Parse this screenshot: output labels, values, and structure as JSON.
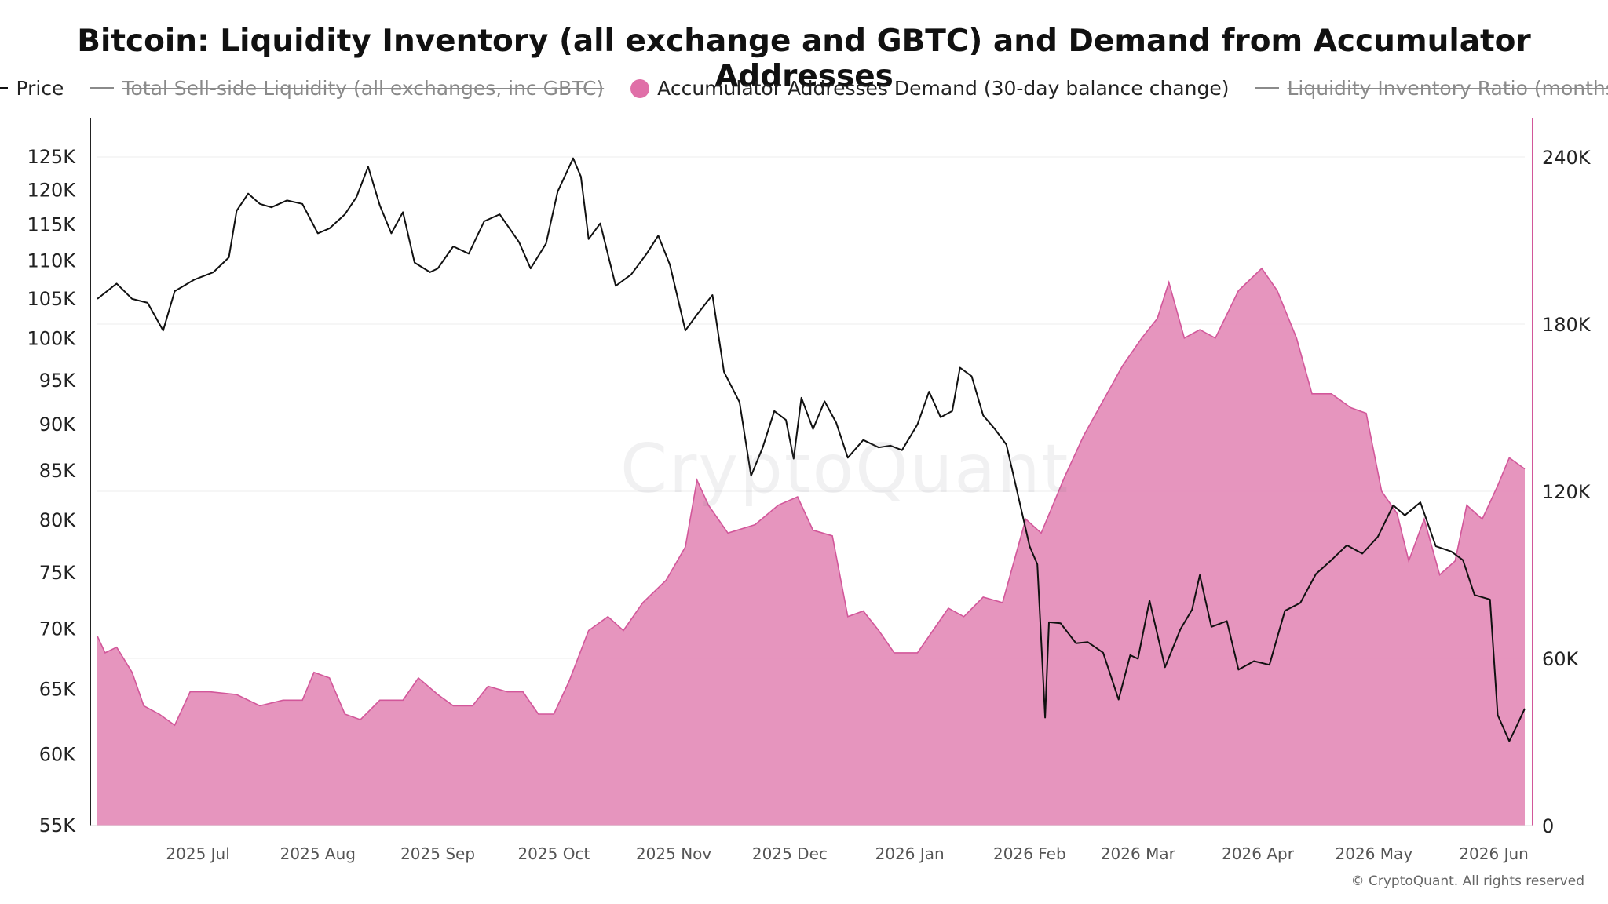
{
  "title": "Bitcoin: Liquidity Inventory (all exchange and GBTC) and Demand from Accumulator Addresses",
  "legend": [
    {
      "label": "Price",
      "marker": "line",
      "color": "#111111",
      "active": true
    },
    {
      "label": "Total Sell-side Liquidity (all exchanges, inc GBTC)",
      "marker": "line",
      "color": "#8a8a8a",
      "active": false
    },
    {
      "label": "Accumulator Addresses Demand (30-day balance change)",
      "marker": "dot",
      "color": "#e06fa8",
      "active": true
    },
    {
      "label": "Liquidity Inventory Ratio (months)",
      "marker": "line",
      "color": "#8a8a8a",
      "active": false
    }
  ],
  "watermark": "CryptoQuant",
  "copyright": "© CryptoQuant. All rights reserved",
  "colors": {
    "price": "#111111",
    "demand_fill": "#e58fbb",
    "demand_stroke": "#d2579a"
  },
  "chart_data": {
    "type": "line",
    "title": "Bitcoin: Liquidity Inventory (all exchange and GBTC) and Demand from Accumulator Addresses",
    "x_start": "2025-06-05",
    "x_end": "2026-06-09",
    "x_tick_labels": [
      "2025 Jul",
      "2025 Aug",
      "2025 Sep",
      "2025 Oct",
      "2025 Nov",
      "2025 Dec",
      "2026 Jan",
      "2026 Feb",
      "2026 Mar",
      "2026 Apr",
      "2026 May",
      "2026 Jun"
    ],
    "x_tick_dates": [
      "2025-07-01",
      "2025-08-01",
      "2025-09-01",
      "2025-10-01",
      "2025-11-01",
      "2025-12-01",
      "2026-01-01",
      "2026-02-01",
      "2026-03-01",
      "2026-04-01",
      "2026-05-01",
      "2026-06-01"
    ],
    "y_left": {
      "scale": "log",
      "range": [
        55000,
        125000
      ],
      "ticks": [
        55000,
        60000,
        65000,
        70000,
        75000,
        80000,
        85000,
        90000,
        95000,
        100000,
        105000,
        110000,
        115000,
        120000,
        125000
      ],
      "tick_labels": [
        "55K",
        "60K",
        "65K",
        "70K",
        "75K",
        "80K",
        "85K",
        "90K",
        "95K",
        "100K",
        "105K",
        "110K",
        "115K",
        "120K",
        "125K"
      ]
    },
    "y_right": {
      "scale": "linear",
      "range": [
        0,
        240000
      ],
      "ticks": [
        0,
        60000,
        120000,
        180000,
        240000
      ],
      "tick_labels": [
        "0",
        "60K",
        "120K",
        "180K",
        "240K"
      ]
    },
    "grid": true,
    "series": [
      {
        "name": "Price",
        "axis": "left",
        "points": [
          [
            "2025-06-05",
            105000
          ],
          [
            "2025-06-10",
            107000
          ],
          [
            "2025-06-14",
            105000
          ],
          [
            "2025-06-18",
            104500
          ],
          [
            "2025-06-22",
            101000
          ],
          [
            "2025-06-25",
            106000
          ],
          [
            "2025-06-30",
            107500
          ],
          [
            "2025-07-05",
            108500
          ],
          [
            "2025-07-09",
            110500
          ],
          [
            "2025-07-11",
            117000
          ],
          [
            "2025-07-14",
            119500
          ],
          [
            "2025-07-17",
            118000
          ],
          [
            "2025-07-20",
            117500
          ],
          [
            "2025-07-24",
            118500
          ],
          [
            "2025-07-28",
            118000
          ],
          [
            "2025-08-01",
            113800
          ],
          [
            "2025-08-04",
            114500
          ],
          [
            "2025-08-08",
            116500
          ],
          [
            "2025-08-11",
            119000
          ],
          [
            "2025-08-14",
            123500
          ],
          [
            "2025-08-17",
            117800
          ],
          [
            "2025-08-20",
            113800
          ],
          [
            "2025-08-23",
            116800
          ],
          [
            "2025-08-26",
            109800
          ],
          [
            "2025-08-30",
            108500
          ],
          [
            "2025-09-01",
            109000
          ],
          [
            "2025-09-05",
            112000
          ],
          [
            "2025-09-09",
            111000
          ],
          [
            "2025-09-13",
            115500
          ],
          [
            "2025-09-17",
            116500
          ],
          [
            "2025-09-22",
            112600
          ],
          [
            "2025-09-25",
            109000
          ],
          [
            "2025-09-29",
            112400
          ],
          [
            "2025-10-02",
            119800
          ],
          [
            "2025-10-06",
            124800
          ],
          [
            "2025-10-08",
            122000
          ],
          [
            "2025-10-10",
            113000
          ],
          [
            "2025-10-13",
            115200
          ],
          [
            "2025-10-17",
            106700
          ],
          [
            "2025-10-21",
            108200
          ],
          [
            "2025-10-25",
            111000
          ],
          [
            "2025-10-28",
            113500
          ],
          [
            "2025-10-31",
            109500
          ],
          [
            "2025-11-04",
            101000
          ],
          [
            "2025-11-07",
            103000
          ],
          [
            "2025-11-11",
            105500
          ],
          [
            "2025-11-14",
            96000
          ],
          [
            "2025-11-18",
            92500
          ],
          [
            "2025-11-21",
            84500
          ],
          [
            "2025-11-24",
            87500
          ],
          [
            "2025-11-27",
            91500
          ],
          [
            "2025-11-30",
            90500
          ],
          [
            "2025-12-02",
            86300
          ],
          [
            "2025-12-04",
            93000
          ],
          [
            "2025-12-07",
            89500
          ],
          [
            "2025-12-10",
            92600
          ],
          [
            "2025-12-13",
            90200
          ],
          [
            "2025-12-16",
            86400
          ],
          [
            "2025-12-20",
            88300
          ],
          [
            "2025-12-24",
            87500
          ],
          [
            "2025-12-27",
            87700
          ],
          [
            "2025-12-30",
            87200
          ],
          [
            "2026-01-03",
            90000
          ],
          [
            "2026-01-06",
            93700
          ],
          [
            "2026-01-09",
            90800
          ],
          [
            "2026-01-12",
            91500
          ],
          [
            "2026-01-14",
            96500
          ],
          [
            "2026-01-17",
            95500
          ],
          [
            "2026-01-20",
            91000
          ],
          [
            "2026-01-23",
            89500
          ],
          [
            "2026-01-26",
            87800
          ],
          [
            "2026-01-29",
            82500
          ],
          [
            "2026-02-01",
            77500
          ],
          [
            "2026-02-03",
            75800
          ],
          [
            "2026-02-05",
            62800
          ],
          [
            "2026-02-06",
            70600
          ],
          [
            "2026-02-09",
            70500
          ],
          [
            "2026-02-13",
            68800
          ],
          [
            "2026-02-16",
            68900
          ],
          [
            "2026-02-20",
            68000
          ],
          [
            "2026-02-24",
            64200
          ],
          [
            "2026-02-27",
            67800
          ],
          [
            "2026-03-01",
            67500
          ],
          [
            "2026-03-04",
            72500
          ],
          [
            "2026-03-08",
            66800
          ],
          [
            "2026-03-12",
            70000
          ],
          [
            "2026-03-15",
            71700
          ],
          [
            "2026-03-17",
            74800
          ],
          [
            "2026-03-20",
            70200
          ],
          [
            "2026-03-24",
            70700
          ],
          [
            "2026-03-27",
            66600
          ],
          [
            "2026-03-31",
            67300
          ],
          [
            "2026-04-04",
            67000
          ],
          [
            "2026-04-08",
            71600
          ],
          [
            "2026-04-12",
            72300
          ],
          [
            "2026-04-16",
            74900
          ],
          [
            "2026-04-20",
            76200
          ],
          [
            "2026-04-24",
            77600
          ],
          [
            "2026-04-28",
            76800
          ],
          [
            "2026-05-02",
            78400
          ],
          [
            "2026-05-06",
            81500
          ],
          [
            "2026-05-09",
            80500
          ],
          [
            "2026-05-13",
            81800
          ],
          [
            "2026-05-17",
            77500
          ],
          [
            "2026-05-21",
            77000
          ],
          [
            "2026-05-24",
            76200
          ],
          [
            "2026-05-27",
            73000
          ],
          [
            "2026-05-31",
            72600
          ],
          [
            "2026-06-02",
            63000
          ],
          [
            "2026-06-05",
            61000
          ],
          [
            "2026-06-07",
            62200
          ],
          [
            "2026-06-09",
            63500
          ]
        ]
      },
      {
        "name": "Accumulator Addresses Demand (30-day balance change)",
        "axis": "right",
        "points": [
          [
            "2025-06-05",
            68000
          ],
          [
            "2025-06-07",
            62000
          ],
          [
            "2025-06-10",
            64000
          ],
          [
            "2025-06-14",
            55000
          ],
          [
            "2025-06-17",
            43000
          ],
          [
            "2025-06-21",
            40000
          ],
          [
            "2025-06-25",
            36000
          ],
          [
            "2025-06-29",
            48000
          ],
          [
            "2025-07-04",
            48000
          ],
          [
            "2025-07-11",
            47000
          ],
          [
            "2025-07-17",
            43000
          ],
          [
            "2025-07-23",
            45000
          ],
          [
            "2025-07-28",
            45000
          ],
          [
            "2025-07-31",
            55000
          ],
          [
            "2025-08-04",
            53000
          ],
          [
            "2025-08-08",
            40000
          ],
          [
            "2025-08-12",
            38000
          ],
          [
            "2025-08-17",
            45000
          ],
          [
            "2025-08-23",
            45000
          ],
          [
            "2025-08-27",
            53000
          ],
          [
            "2025-09-01",
            47000
          ],
          [
            "2025-09-05",
            43000
          ],
          [
            "2025-09-10",
            43000
          ],
          [
            "2025-09-14",
            50000
          ],
          [
            "2025-09-19",
            48000
          ],
          [
            "2025-09-23",
            48000
          ],
          [
            "2025-09-27",
            40000
          ],
          [
            "2025-10-01",
            40000
          ],
          [
            "2025-10-05",
            52000
          ],
          [
            "2025-10-10",
            70000
          ],
          [
            "2025-10-15",
            75000
          ],
          [
            "2025-10-19",
            70000
          ],
          [
            "2025-10-24",
            80000
          ],
          [
            "2025-10-30",
            88000
          ],
          [
            "2025-11-04",
            100000
          ],
          [
            "2025-11-07",
            124000
          ],
          [
            "2025-11-10",
            115000
          ],
          [
            "2025-11-15",
            105000
          ],
          [
            "2025-11-22",
            108000
          ],
          [
            "2025-11-28",
            115000
          ],
          [
            "2025-12-03",
            118000
          ],
          [
            "2025-12-07",
            106000
          ],
          [
            "2025-12-12",
            104000
          ],
          [
            "2025-12-16",
            75000
          ],
          [
            "2025-12-20",
            77000
          ],
          [
            "2025-12-24",
            70000
          ],
          [
            "2025-12-28",
            62000
          ],
          [
            "2026-01-03",
            62000
          ],
          [
            "2026-01-07",
            70000
          ],
          [
            "2026-01-11",
            78000
          ],
          [
            "2026-01-15",
            75000
          ],
          [
            "2026-01-20",
            82000
          ],
          [
            "2026-01-25",
            80000
          ],
          [
            "2026-01-31",
            110000
          ],
          [
            "2026-02-04",
            105000
          ],
          [
            "2026-02-10",
            125000
          ],
          [
            "2026-02-15",
            140000
          ],
          [
            "2026-02-21",
            155000
          ],
          [
            "2026-02-25",
            165000
          ],
          [
            "2026-03-02",
            175000
          ],
          [
            "2026-03-06",
            182000
          ],
          [
            "2026-03-09",
            195000
          ],
          [
            "2026-03-13",
            175000
          ],
          [
            "2026-03-17",
            178000
          ],
          [
            "2026-03-21",
            175000
          ],
          [
            "2026-03-27",
            192000
          ],
          [
            "2026-04-02",
            200000
          ],
          [
            "2026-04-06",
            192000
          ],
          [
            "2026-04-11",
            175000
          ],
          [
            "2026-04-15",
            155000
          ],
          [
            "2026-04-20",
            155000
          ],
          [
            "2026-04-25",
            150000
          ],
          [
            "2026-04-29",
            148000
          ],
          [
            "2026-05-03",
            120000
          ],
          [
            "2026-05-07",
            112000
          ],
          [
            "2026-05-10",
            95000
          ],
          [
            "2026-05-14",
            110000
          ],
          [
            "2026-05-18",
            90000
          ],
          [
            "2026-05-22",
            95000
          ],
          [
            "2026-05-25",
            115000
          ],
          [
            "2026-05-29",
            110000
          ],
          [
            "2026-06-02",
            122000
          ],
          [
            "2026-06-05",
            132000
          ],
          [
            "2026-06-09",
            128000
          ],
          [
            "2026-06-05",
            128000
          ]
        ]
      }
    ]
  }
}
